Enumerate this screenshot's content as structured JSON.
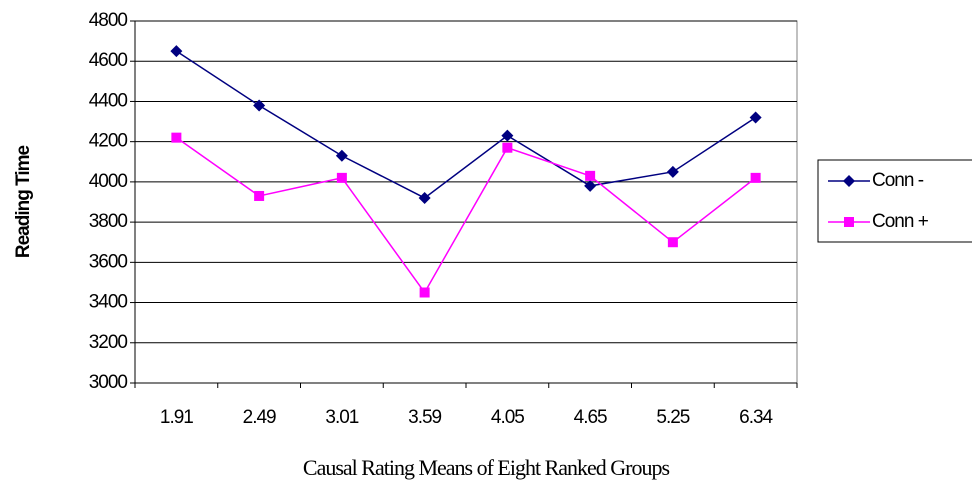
{
  "chart_data": {
    "type": "line",
    "x_label": "Causal Rating Means of Eight Ranked Groups",
    "y_label": "Reading Time",
    "categories": [
      "1.91",
      "2.49",
      "3.01",
      "3.59",
      "4.05",
      "4.65",
      "5.25",
      "6.34"
    ],
    "series": [
      {
        "name": "Conn -",
        "color": "#000080",
        "marker": "diamond",
        "values": [
          4650,
          4380,
          4130,
          3920,
          4230,
          3980,
          4050,
          4320
        ]
      },
      {
        "name": "Conn +",
        "color": "#ff00ff",
        "marker": "square",
        "values": [
          4220,
          3930,
          4020,
          3450,
          4170,
          4030,
          3700,
          4020
        ]
      }
    ],
    "ylim": [
      3000,
      4800
    ],
    "yticks": [
      3000,
      3200,
      3400,
      3600,
      3800,
      4000,
      4200,
      4400,
      4600,
      4800
    ],
    "grid": true,
    "legend": "right"
  }
}
